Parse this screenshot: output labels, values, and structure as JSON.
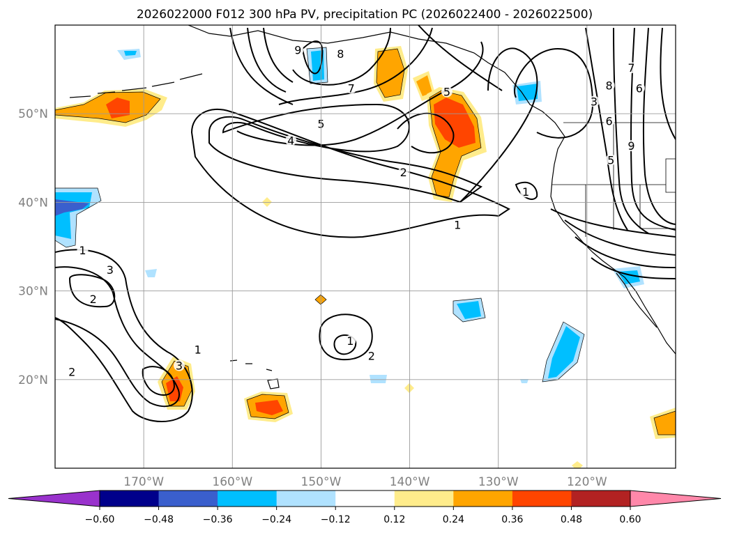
{
  "chart_data": {
    "type": "map",
    "title": "2026022000 F012 300 hPa PV, precipitation PC (2026022400 - 2026022500)",
    "extent": {
      "lon": [
        -180,
        -110
      ],
      "lat": [
        10,
        60
      ]
    },
    "grid": true,
    "lat_ticks": [
      {
        "value": 20,
        "label": "20°N"
      },
      {
        "value": 30,
        "label": "30°N"
      },
      {
        "value": 40,
        "label": "40°N"
      },
      {
        "value": 50,
        "label": "50°N"
      }
    ],
    "lon_ticks": [
      {
        "value": -170,
        "label": "170°W"
      },
      {
        "value": -160,
        "label": "160°W"
      },
      {
        "value": -150,
        "label": "150°W"
      },
      {
        "value": -140,
        "label": "140°W"
      },
      {
        "value": -130,
        "label": "130°W"
      },
      {
        "value": -120,
        "label": "120°W"
      }
    ],
    "colorbar": {
      "levels": [
        -0.6,
        -0.48,
        -0.36,
        -0.24,
        -0.12,
        0.12,
        0.24,
        0.36,
        0.48,
        0.6
      ],
      "tick_labels": [
        "−0.60",
        "−0.48",
        "−0.36",
        "−0.24",
        "−0.12",
        "0.12",
        "0.24",
        "0.36",
        "0.48",
        "0.60"
      ],
      "under_color": "#9932cc",
      "over_color": "#ff88aa",
      "colors": [
        "#00008b",
        "#3a5fcd",
        "#00bfff",
        "#b0e2ff",
        "#ffffff",
        "#ffec8b",
        "#ffa500",
        "#ff4500",
        "#b22222"
      ]
    },
    "pv_contour_labels": [
      {
        "text": "1",
        "lon": -134.6,
        "lat": 37.1
      },
      {
        "text": "1",
        "lon": -126.9,
        "lat": 40.8
      },
      {
        "text": "1",
        "lon": -146.7,
        "lat": 24.0
      },
      {
        "text": "1",
        "lon": -176.9,
        "lat": 34.2
      },
      {
        "text": "1",
        "lon": -163.9,
        "lat": 23.0
      },
      {
        "text": "2",
        "lon": -140.7,
        "lat": 43.0
      },
      {
        "text": "2",
        "lon": -144.3,
        "lat": 22.3
      },
      {
        "text": "2",
        "lon": -175.7,
        "lat": 28.7
      },
      {
        "text": "2",
        "lon": -178.1,
        "lat": 20.5
      },
      {
        "text": "3",
        "lon": -173.8,
        "lat": 32.0
      },
      {
        "text": "3",
        "lon": -166.0,
        "lat": 21.2
      },
      {
        "text": "3",
        "lon": -119.2,
        "lat": 51.0
      },
      {
        "text": "4",
        "lon": -153.4,
        "lat": 46.6
      },
      {
        "text": "5",
        "lon": -150.0,
        "lat": 48.5
      },
      {
        "text": "5",
        "lon": -135.8,
        "lat": 52.1
      },
      {
        "text": "5",
        "lon": -117.3,
        "lat": 44.4
      },
      {
        "text": "6",
        "lon": -117.5,
        "lat": 48.8
      },
      {
        "text": "6",
        "lon": -114.1,
        "lat": 52.5
      },
      {
        "text": "7",
        "lon": -146.6,
        "lat": 52.5
      },
      {
        "text": "7",
        "lon": -115.0,
        "lat": 54.8
      },
      {
        "text": "8",
        "lon": -147.8,
        "lat": 56.4
      },
      {
        "text": "8",
        "lon": -117.5,
        "lat": 52.8
      },
      {
        "text": "9",
        "lon": -152.6,
        "lat": 56.8
      },
      {
        "text": "9",
        "lon": -115.0,
        "lat": 46.0
      }
    ]
  }
}
